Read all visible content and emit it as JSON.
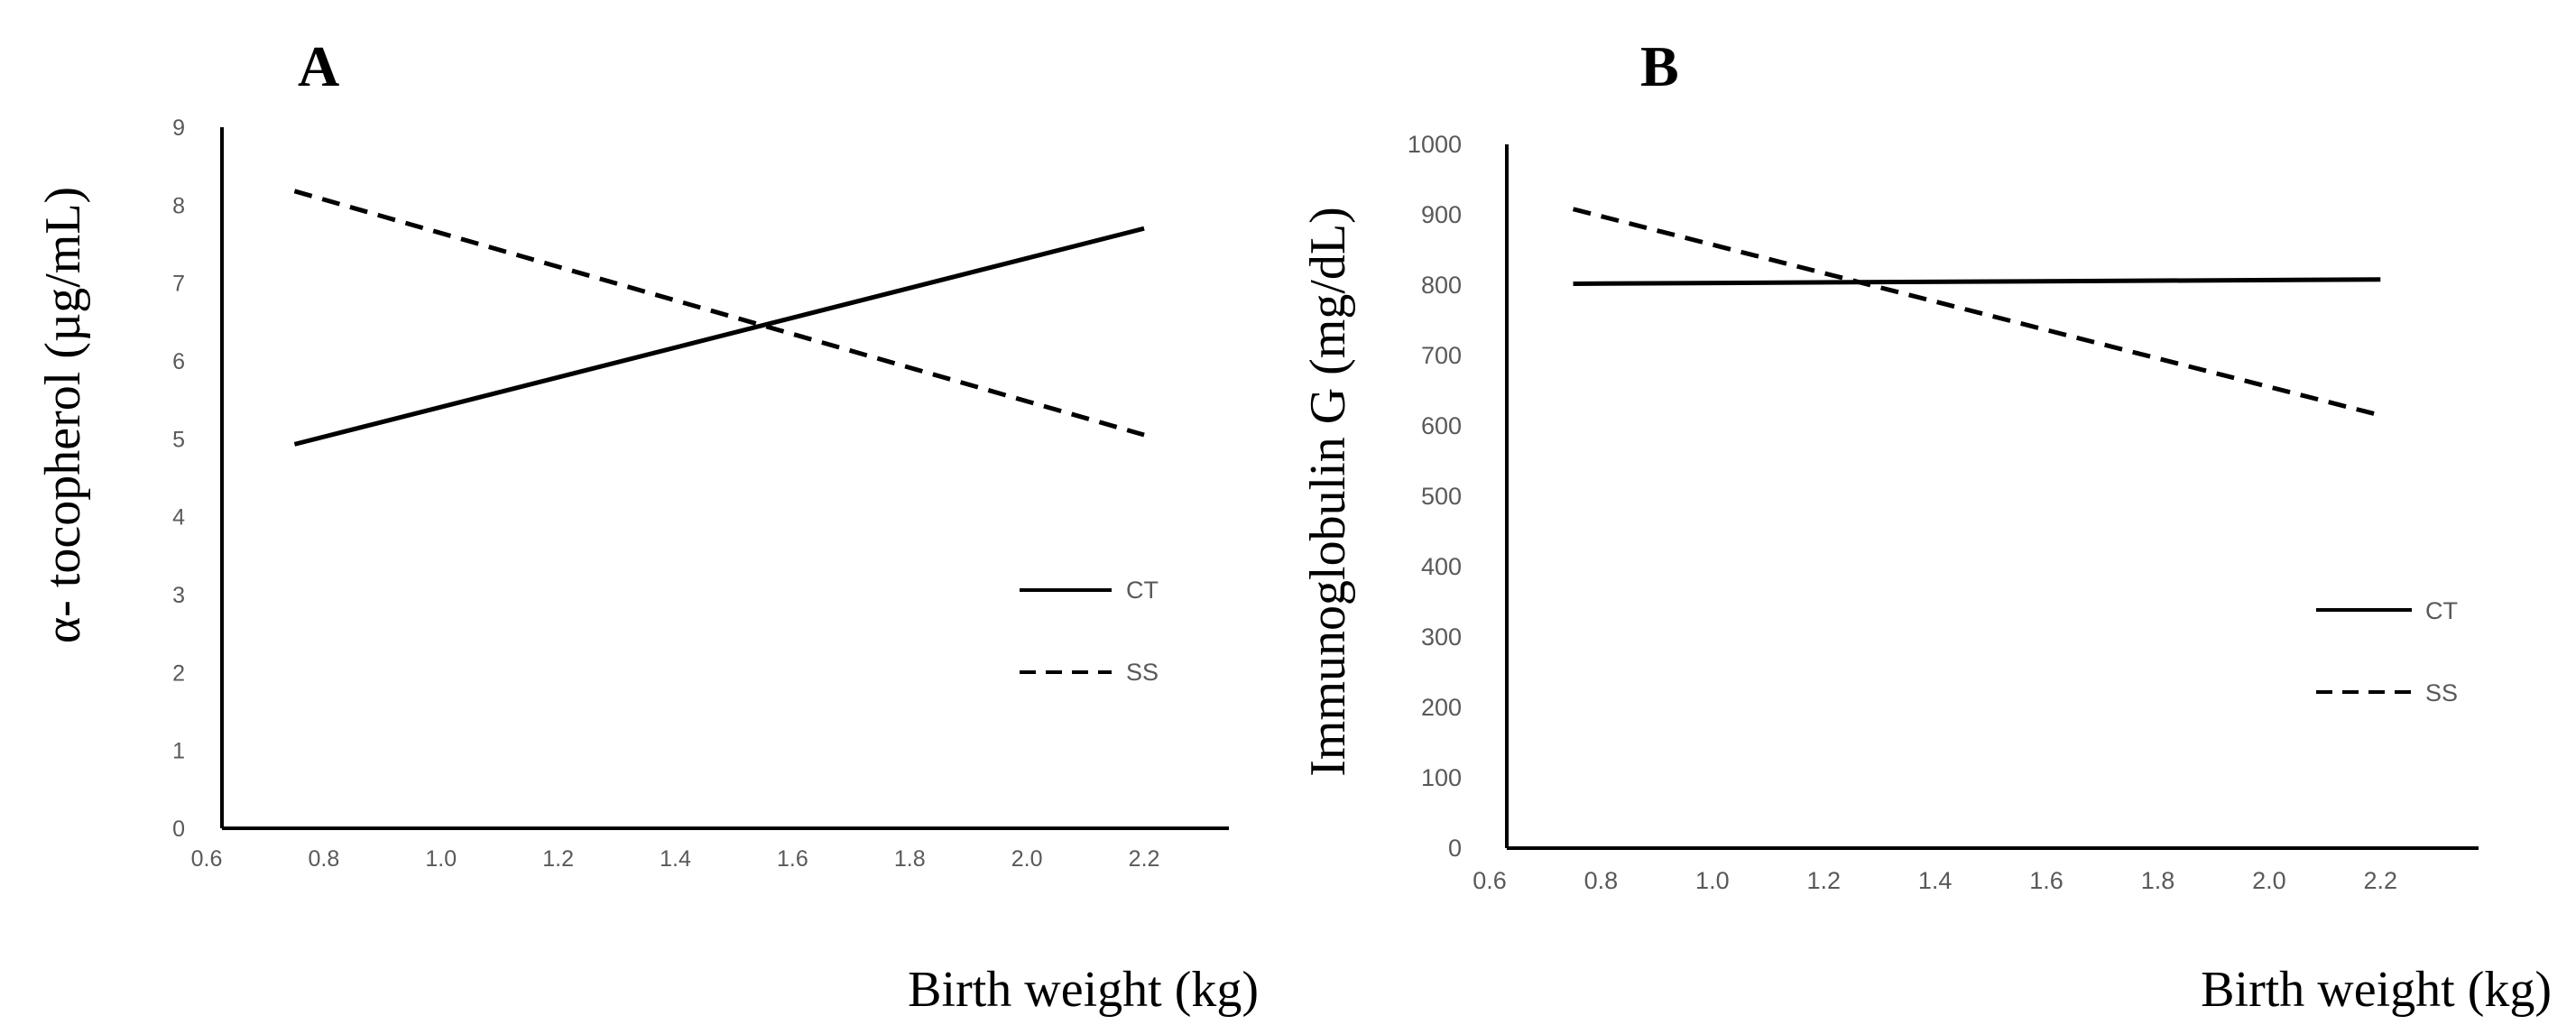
{
  "chart_data": [
    {
      "panel_label": "A",
      "type": "line",
      "xlabel": "Birth weight (kg)",
      "ylabel": "α- tocopherol (µg/mL)",
      "xlim": [
        0.6,
        2.3
      ],
      "ylim": [
        0,
        9
      ],
      "xticks": [
        0.6,
        0.8,
        1.0,
        1.2,
        1.4,
        1.6,
        1.8,
        2.0,
        2.2
      ],
      "xtick_labels": [
        "0.6",
        "0.8",
        "1.0",
        "1.2",
        "1.4",
        "1.6",
        "1.8",
        "2.0",
        "2.2"
      ],
      "yticks": [
        0,
        1,
        2,
        3,
        4,
        5,
        6,
        7,
        8,
        9
      ],
      "ytick_labels": [
        "0",
        "1",
        "2",
        "3",
        "4",
        "5",
        "6",
        "7",
        "8",
        "9"
      ],
      "legend_position": "right",
      "series": [
        {
          "name": "CT",
          "style": "solid",
          "x": [
            0.75,
            2.2
          ],
          "y": [
            4.93,
            7.7
          ]
        },
        {
          "name": "SS",
          "style": "dashed",
          "x": [
            0.75,
            2.2
          ],
          "y": [
            8.18,
            5.05
          ]
        }
      ]
    },
    {
      "panel_label": "B",
      "type": "line",
      "xlabel": "Birth weight (kg)",
      "ylabel": "Immunoglobulin G (mg/dL)",
      "xlim": [
        0.6,
        2.3
      ],
      "ylim": [
        0,
        1000
      ],
      "xticks": [
        0.6,
        0.8,
        1.0,
        1.2,
        1.4,
        1.6,
        1.8,
        2.0,
        2.2
      ],
      "xtick_labels": [
        "0.6",
        "0.8",
        "1.0",
        "1.2",
        "1.4",
        "1.6",
        "1.8",
        "2.0",
        "2.2"
      ],
      "yticks": [
        0,
        100,
        200,
        300,
        400,
        500,
        600,
        700,
        800,
        900,
        1000
      ],
      "ytick_labels": [
        "0",
        "100",
        "200",
        "300",
        "400",
        "500",
        "600",
        "700",
        "800",
        "900",
        "1000"
      ],
      "legend_position": "right",
      "series": [
        {
          "name": "CT",
          "style": "solid",
          "x": [
            0.75,
            2.2
          ],
          "y": [
            802,
            808
          ]
        },
        {
          "name": "SS",
          "style": "dashed",
          "x": [
            0.75,
            2.2
          ],
          "y": [
            908,
            615
          ]
        }
      ]
    }
  ]
}
